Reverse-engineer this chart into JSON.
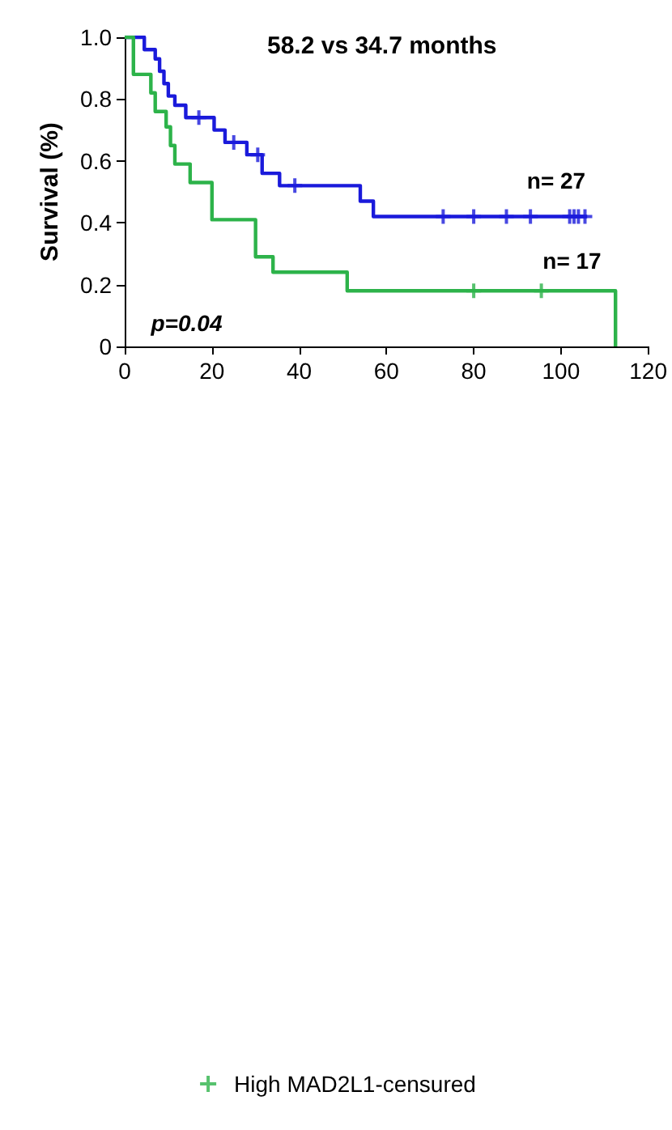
{
  "chart_data": {
    "type": "step",
    "title": "58.2 vs 34.7 months",
    "ylabel": "Survival (%)",
    "xlim": [
      0,
      120
    ],
    "xticks": [
      0,
      20,
      40,
      60,
      80,
      100,
      120
    ],
    "ylim": [
      0,
      1
    ],
    "yticks": [
      0,
      0.2,
      0.4,
      0.6,
      0.8,
      {
        "value": 1,
        "label": "1.0"
      }
    ],
    "grid": false,
    "legend": "bottom",
    "marker": "none",
    "line_style": "solid",
    "series": [
      {
        "color": "#1a1adb",
        "x": [
          0,
          4.5,
          7,
          8,
          9,
          10,
          11.5,
          14,
          20.5,
          23,
          28,
          31.5,
          35.5,
          54,
          57,
          106
        ],
        "values": [
          1,
          0.96,
          0.93,
          0.89,
          0.85,
          0.81,
          0.78,
          0.74,
          0.7,
          0.66,
          0.62,
          0.56,
          0.52,
          0.47,
          0.42,
          0.42
        ]
      },
      {
        "color": "#2db34a",
        "x": [
          0,
          2,
          6,
          7,
          9.5,
          10.5,
          11.5,
          15,
          20,
          30,
          34,
          51,
          112.5
        ],
        "values": [
          1,
          0.88,
          0.82,
          0.76,
          0.71,
          0.65,
          0.59,
          0.53,
          0.41,
          0.29,
          0.24,
          0.18,
          0
        ]
      },
      {
        "type": "scatter",
        "marker": "cross",
        "color": "#1a1adb",
        "x": [
          17,
          25,
          30.5,
          39,
          73,
          80,
          87.5,
          93,
          102,
          103,
          104,
          105.5
        ],
        "values": [
          0.74,
          0.66,
          0.62,
          0.52,
          0.42,
          0.42,
          0.42,
          0.42,
          0.42,
          0.42,
          0.42,
          0.42
        ]
      },
      {
        "type": "scatter",
        "marker": "cross",
        "name": "High MAD2L1-censured",
        "color": "#2db34a",
        "x": [
          80,
          95.5
        ],
        "values": [
          0.18,
          0.18
        ]
      }
    ],
    "annotations": [
      "n= 27",
      "n= 17",
      "p=0.04"
    ]
  }
}
